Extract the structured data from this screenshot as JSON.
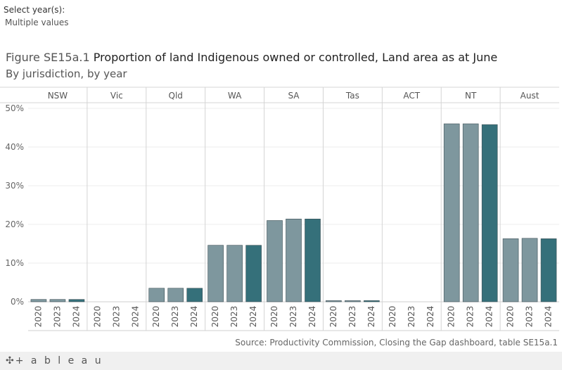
{
  "filter": {
    "label": "Select year(s):",
    "value": "Multiple values"
  },
  "header": {
    "title_prefix": "Figure SE15a.1",
    "title_main": "Proportion of land Indigenous owned or controlled, Land area as at June",
    "subtitle": "By jurisdiction, by year"
  },
  "source": "Source: Productivity Commission, Closing the Gap dashboard, table SE15a.1",
  "footer": {
    "logo_glyph": "✣",
    "logo_text": "+ a b l e a u"
  },
  "chart_data": {
    "type": "bar",
    "panels": [
      "NSW",
      "Vic",
      "Qld",
      "WA",
      "SA",
      "Tas",
      "ACT",
      "NT",
      "Aust"
    ],
    "years": [
      "2020",
      "2023",
      "2024"
    ],
    "values": {
      "NSW": [
        0.6,
        0.6,
        0.6
      ],
      "Vic": [
        0,
        0,
        0
      ],
      "Qld": [
        3.5,
        3.5,
        3.5
      ],
      "WA": [
        14.6,
        14.6,
        14.6
      ],
      "SA": [
        21.0,
        21.4,
        21.4
      ],
      "Tas": [
        0.3,
        0.3,
        0.3
      ],
      "ACT": [
        0,
        0,
        0
      ],
      "NT": [
        46.0,
        46.0,
        45.8
      ],
      "Aust": [
        16.3,
        16.4,
        16.3
      ]
    },
    "yticks": [
      "0%",
      "10%",
      "20%",
      "30%",
      "40%",
      "50%"
    ],
    "ylim": [
      0,
      52
    ],
    "colors": {
      "past_years": "#7e979e",
      "latest_year": "#35707a",
      "bar_edge": "#3e4f55"
    }
  }
}
